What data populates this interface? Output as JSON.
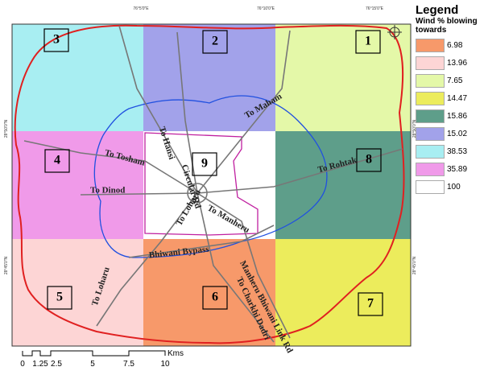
{
  "legend": {
    "title": "Legend",
    "subtitle": "Wind % blowing towards",
    "entries": [
      {
        "value": 6.98,
        "color": "#f7996a"
      },
      {
        "value": 13.96,
        "color": "#fdd5d5"
      },
      {
        "value": 7.65,
        "color": "#e4f8a8"
      },
      {
        "value": 14.47,
        "color": "#ecec5c"
      },
      {
        "value": 15.86,
        "color": "#5e9e8a"
      },
      {
        "value": 15.02,
        "color": "#a2a2ea"
      },
      {
        "value": 38.53,
        "color": "#a8eef2"
      },
      {
        "value": 35.89,
        "color": "#f09ae9"
      },
      {
        "value": 100,
        "color": "#ffffff"
      }
    ]
  },
  "zones": [
    {
      "label": "3",
      "color": "#a8eef2"
    },
    {
      "label": "2",
      "color": "#a2a2ea"
    },
    {
      "label": "1",
      "color": "#e4f8a8"
    },
    {
      "label": "4",
      "color": "#f09ae9"
    },
    {
      "label": "9",
      "color": "#ffffff"
    },
    {
      "label": "8",
      "color": "#5e9e8a"
    },
    {
      "label": "5",
      "color": "#fdd5d5"
    },
    {
      "label": "6",
      "color": "#f7996a"
    },
    {
      "label": "7",
      "color": "#ecec5c"
    }
  ],
  "roads": [
    "To Maham",
    "To Hansi",
    "To Tosham",
    "To Dinod",
    "Circular Rd",
    "To Manheru",
    "To Rohtak",
    "To Loharu",
    "To Loharu",
    "Bhiwani Bypass",
    "Manheru Bhiwani Link Rd",
    "To Charkhi Dadri"
  ],
  "scale": {
    "unit": "Kms",
    "labels": [
      "0",
      "1.25",
      "2.5",
      "5",
      "7.5",
      "10"
    ]
  },
  "coordinates": {
    "top": [
      "76°5'0\"E",
      "76°10'0\"E",
      "76°15'0\"E"
    ],
    "left": [
      "28°50'0\"N",
      "28°45'0\"N"
    ],
    "right": [
      "28°50'0\"N",
      "28°45'0\"N"
    ]
  }
}
